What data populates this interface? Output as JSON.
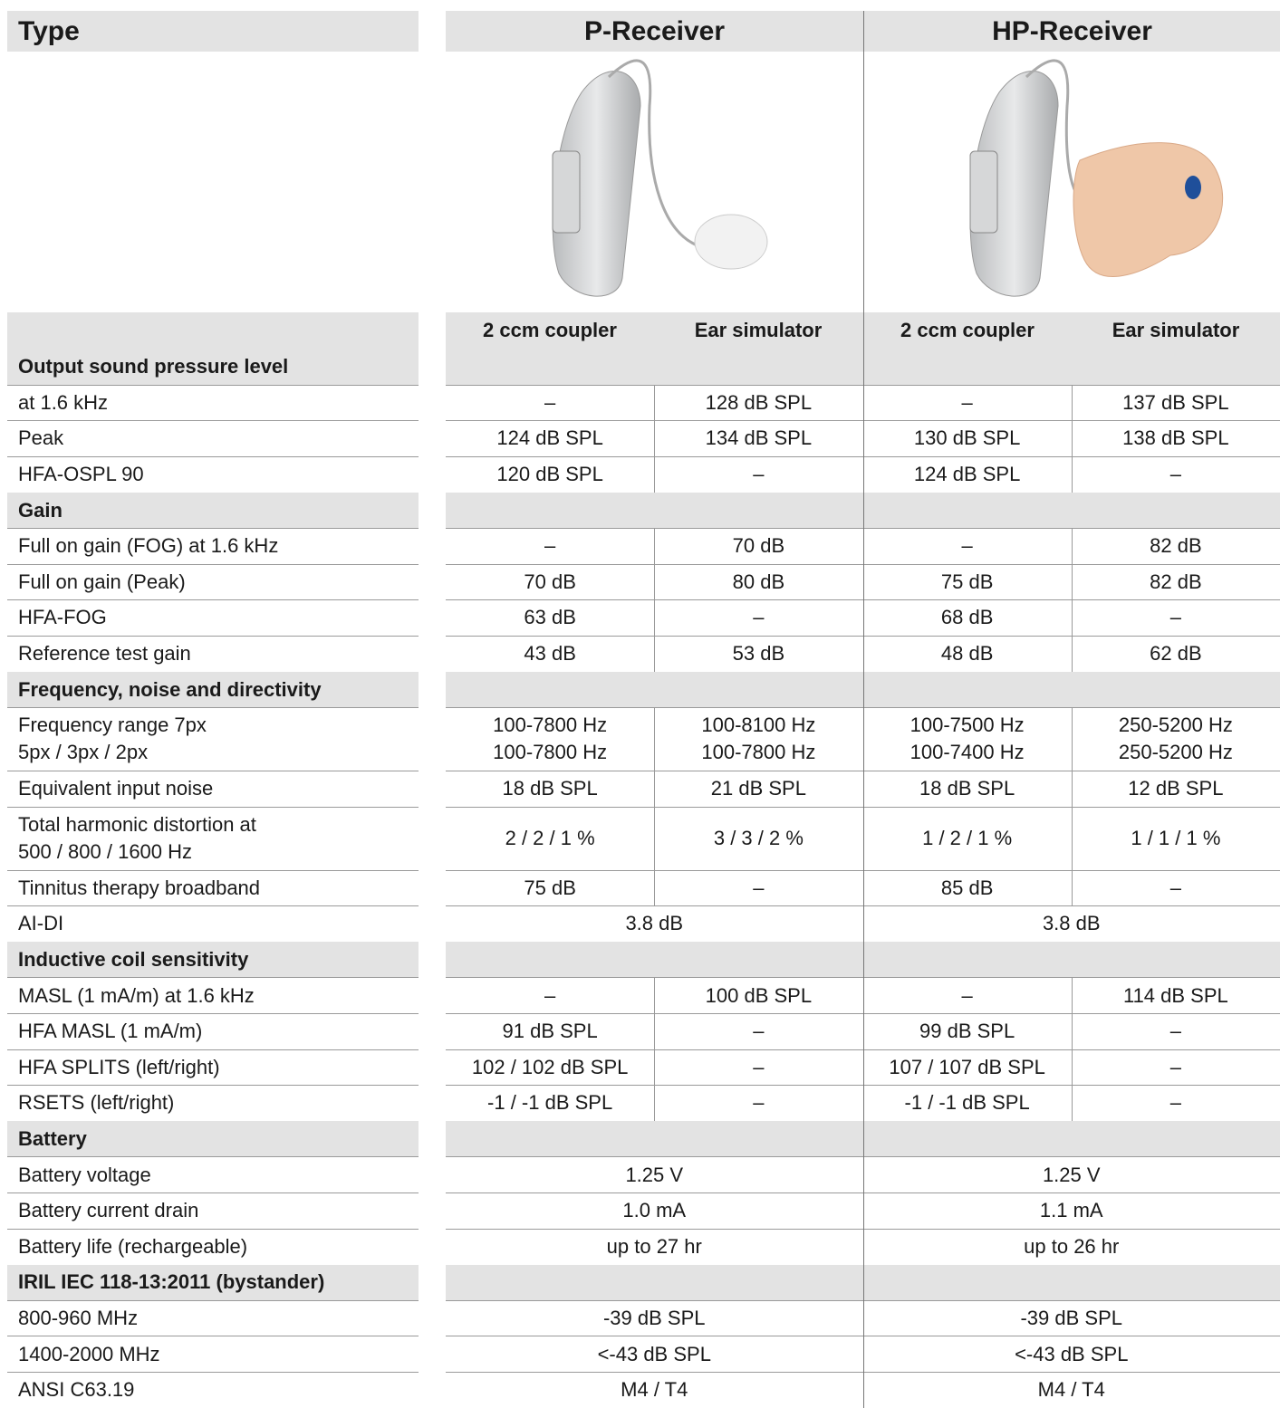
{
  "header": {
    "type_label": "Type",
    "columns": [
      "P-Receiver",
      "HP-Receiver"
    ],
    "subcolumns": [
      "2 ccm coupler",
      "Ear simulator",
      "2 ccm coupler",
      "Ear simulator"
    ]
  },
  "sections": [
    {
      "title": "Output sound pressure level",
      "rows": [
        {
          "label": "at 1.6 kHz",
          "cells": [
            "–",
            "128 dB SPL",
            "–",
            "137 dB SPL"
          ]
        },
        {
          "label": "Peak",
          "cells": [
            "124 dB SPL",
            "134 dB SPL",
            "130 dB SPL",
            "138 dB SPL"
          ]
        },
        {
          "label": "HFA-OSPL 90",
          "cells": [
            "120 dB SPL",
            "–",
            "124 dB SPL",
            "–"
          ]
        }
      ]
    },
    {
      "title": "Gain",
      "rows": [
        {
          "label": "Full on gain (FOG) at 1.6 kHz",
          "cells": [
            "–",
            "70 dB",
            "–",
            "82 dB"
          ]
        },
        {
          "label": "Full on gain (Peak)",
          "cells": [
            "70 dB",
            "80 dB",
            "75 dB",
            "82 dB"
          ]
        },
        {
          "label": "HFA-FOG",
          "cells": [
            "63 dB",
            "–",
            "68 dB",
            "–"
          ]
        },
        {
          "label": "Reference test gain",
          "cells": [
            "43 dB",
            "53 dB",
            "48 dB",
            "62 dB"
          ]
        }
      ]
    },
    {
      "title": "Frequency, noise and directivity",
      "rows": [
        {
          "label": "Frequency range 7px\n5px / 3px / 2px",
          "cells": [
            "100-7800 Hz\n100-7800 Hz",
            "100-8100 Hz\n100-7800 Hz",
            "100-7500 Hz\n100-7400 Hz",
            "250-5200 Hz\n250-5200 Hz"
          ]
        },
        {
          "label": "Equivalent input noise",
          "cells": [
            "18 dB SPL",
            "21 dB SPL",
            "18 dB SPL",
            "12 dB SPL"
          ]
        },
        {
          "label": "Total harmonic distortion at\n500 / 800 / 1600 Hz",
          "cells": [
            "2 / 2 / 1 %",
            "3 / 3 / 2 %",
            "1 / 2 / 1 %",
            "1 / 1 / 1 %"
          ]
        },
        {
          "label": "Tinnitus therapy broadband",
          "cells": [
            "75 dB",
            "–",
            "85 dB",
            "–"
          ]
        },
        {
          "label": "AI-DI",
          "cells": [
            "3.8 dB",
            "3.8 dB"
          ]
        }
      ]
    },
    {
      "title": "Inductive coil sensitivity",
      "rows": [
        {
          "label": "MASL (1 mA/m) at 1.6 kHz",
          "cells": [
            "–",
            "100 dB SPL",
            "–",
            "114 dB SPL"
          ]
        },
        {
          "label": "HFA MASL (1 mA/m)",
          "cells": [
            "91 dB SPL",
            "–",
            "99 dB SPL",
            "–"
          ]
        },
        {
          "label": "HFA SPLITS (left/right)",
          "cells": [
            "102 / 102 dB SPL",
            "–",
            "107 / 107 dB SPL",
            "–"
          ]
        },
        {
          "label": "RSETS (left/right)",
          "cells": [
            "-1 / -1 dB SPL",
            "–",
            "-1 / -1 dB SPL",
            "–"
          ]
        }
      ]
    },
    {
      "title": "Battery",
      "rows": [
        {
          "label": "Battery voltage",
          "cells": [
            "1.25 V",
            "1.25 V"
          ]
        },
        {
          "label": "Battery current drain",
          "cells": [
            "1.0 mA",
            "1.1 mA"
          ]
        },
        {
          "label": "Battery life (rechargeable)",
          "cells": [
            "up to 27 hr",
            "up to 26 hr"
          ]
        }
      ]
    },
    {
      "title": "IRIL IEC 118-13:2011 (bystander)",
      "rows": [
        {
          "label": "800-960 MHz",
          "cells": [
            "-39 dB SPL",
            "-39 dB SPL"
          ]
        },
        {
          "label": "1400-2000 MHz",
          "cells": [
            "<-43 dB SPL",
            "<-43 dB SPL"
          ]
        },
        {
          "label": "ANSI C63.19",
          "cells": [
            "M4 / T4",
            "M4 / T4"
          ]
        }
      ]
    }
  ]
}
